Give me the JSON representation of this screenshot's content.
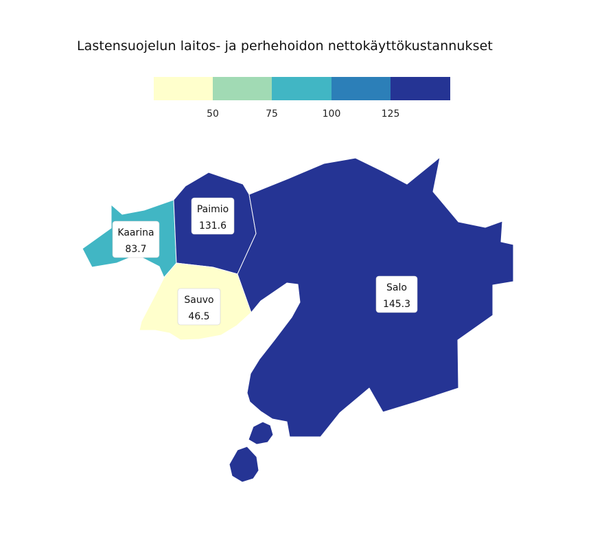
{
  "title": "Lastensuojelun laitos- ja perhehoidon nettokäyttökustannukset",
  "legend": {
    "colors": [
      "#ffffcc",
      "#a1dab4",
      "#41b6c4",
      "#2c7fb8",
      "#253494"
    ],
    "breaks": [
      50,
      75,
      100,
      125
    ],
    "tick_labels": [
      "50",
      "75",
      "100",
      "125"
    ]
  },
  "regions": [
    {
      "id": "kaarina",
      "name": "Kaarina",
      "value": 83.7,
      "value_label": "83.7",
      "color": "#41b6c4"
    },
    {
      "id": "paimio",
      "name": "Paimio",
      "value": 131.6,
      "value_label": "131.6",
      "color": "#253494"
    },
    {
      "id": "sauvo",
      "name": "Sauvo",
      "value": 46.5,
      "value_label": "46.5",
      "color": "#ffffcc"
    },
    {
      "id": "salo",
      "name": "Salo",
      "value": 145.3,
      "value_label": "145.3",
      "color": "#253494"
    }
  ]
}
